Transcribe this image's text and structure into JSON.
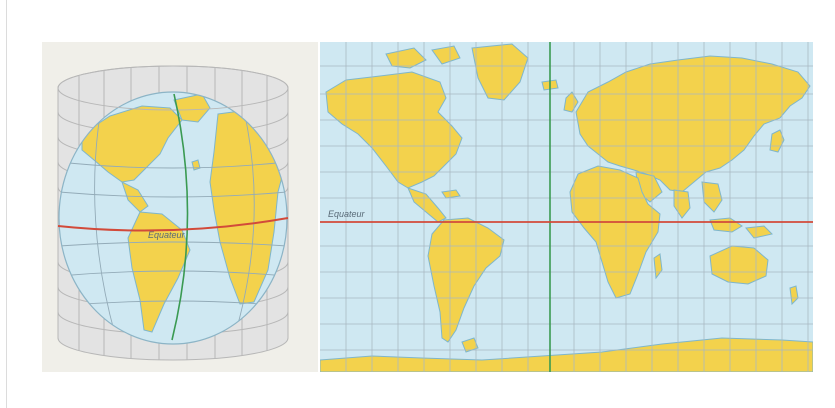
{
  "figure": {
    "cylinder_panel": {
      "equator_label": "Equateur"
    },
    "map_panel": {
      "equator_label": "Equateur"
    }
  },
  "colors": {
    "ocean": "#cfe8f2",
    "land": "#f3d24c",
    "coast": "#7fb6cb",
    "grid": "#a9b9c2",
    "equator": "#d24a3a",
    "meridian": "#3a9a52",
    "cylinder_shade": "#e3e3e3",
    "cylinder_line": "#b7b7b7",
    "panel_bg": "#f0efe9"
  }
}
